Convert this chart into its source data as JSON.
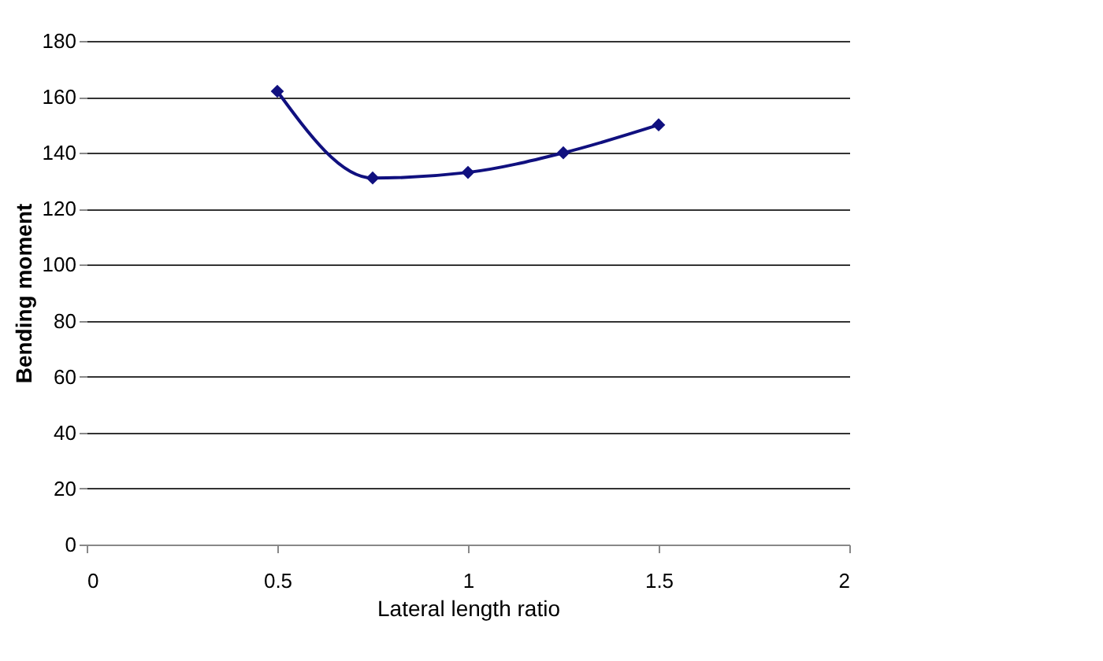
{
  "chart_data": {
    "type": "line",
    "xlabel": "Lateral length ratio",
    "ylabel": "Bending moment",
    "x": [
      0.5,
      0.75,
      1,
      1.25,
      1.5
    ],
    "series": [
      {
        "color": "#10107f",
        "values": [
          162,
          131,
          133,
          140,
          150
        ]
      }
    ],
    "xlim": [
      0,
      2
    ],
    "xticks": [
      0,
      0.5,
      1,
      1.5,
      2
    ],
    "ylim": [
      0,
      180
    ],
    "yticks": [
      0,
      20,
      40,
      60,
      80,
      100,
      120,
      140,
      160,
      180
    ],
    "grid": "y",
    "marker": "diamond",
    "line_style": "solid"
  }
}
